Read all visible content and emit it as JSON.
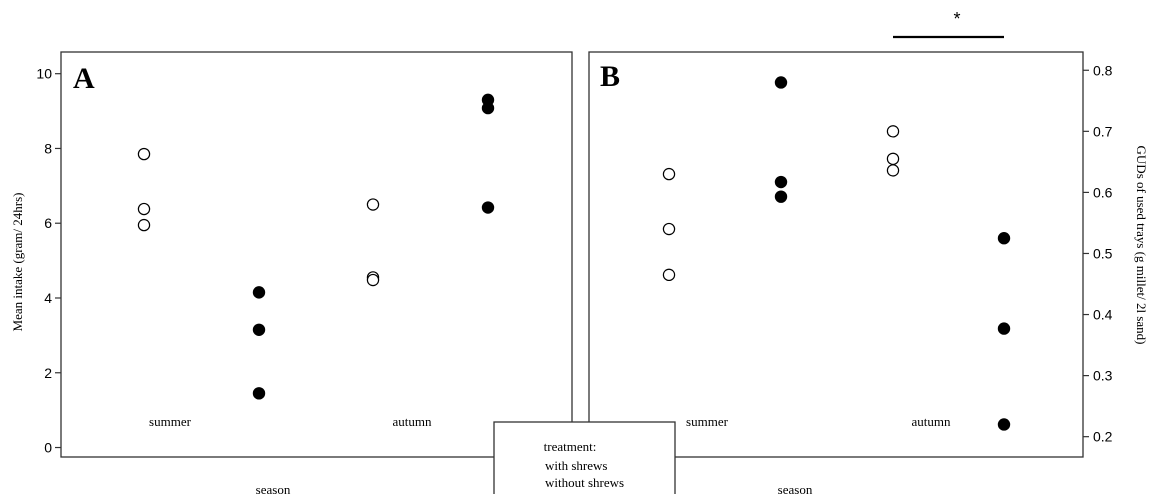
{
  "chart_data": [
    {
      "type": "scatter",
      "panel_label": "A",
      "ylabel": "Mean intake (gram/ 24hrs)",
      "xlabel": "season",
      "ylim": [
        -0.2,
        10.5
      ],
      "yticks": [
        0,
        2,
        4,
        6,
        8,
        10
      ],
      "categories": [
        "summer",
        "autumn"
      ],
      "series": [
        {
          "name": "with shrews",
          "marker": "open-circle",
          "points": [
            {
              "category": "summer",
              "y": 7.85
            },
            {
              "category": "summer",
              "y": 6.38
            },
            {
              "category": "summer",
              "y": 5.95
            },
            {
              "category": "autumn",
              "y": 6.5
            },
            {
              "category": "autumn",
              "y": 4.55
            },
            {
              "category": "autumn",
              "y": 4.48
            }
          ]
        },
        {
          "name": "without shrews",
          "marker": "filled-circle",
          "points": [
            {
              "category": "summer",
              "y": 4.15
            },
            {
              "category": "summer",
              "y": 3.15
            },
            {
              "category": "summer",
              "y": 1.45
            },
            {
              "category": "autumn",
              "y": 9.3
            },
            {
              "category": "autumn",
              "y": 9.08
            },
            {
              "category": "autumn",
              "y": 6.42
            }
          ]
        }
      ]
    },
    {
      "type": "scatter",
      "panel_label": "B",
      "ylabel": "GUDs of used trays (g millet/ 2l sand)",
      "xlabel": "season",
      "ylim": [
        0.17,
        0.825
      ],
      "yticks": [
        0.2,
        0.3,
        0.4,
        0.5,
        0.6,
        0.7,
        0.8
      ],
      "categories": [
        "summer",
        "autumn"
      ],
      "significance": {
        "label": "*",
        "category": "autumn"
      },
      "series": [
        {
          "name": "with shrews",
          "marker": "open-circle",
          "points": [
            {
              "category": "summer",
              "y": 0.63
            },
            {
              "category": "summer",
              "y": 0.54
            },
            {
              "category": "summer",
              "y": 0.465
            },
            {
              "category": "autumn",
              "y": 0.7
            },
            {
              "category": "autumn",
              "y": 0.655
            },
            {
              "category": "autumn",
              "y": 0.636
            }
          ]
        },
        {
          "name": "without shrews",
          "marker": "filled-circle",
          "points": [
            {
              "category": "summer",
              "y": 0.78
            },
            {
              "category": "summer",
              "y": 0.617
            },
            {
              "category": "summer",
              "y": 0.593
            },
            {
              "category": "autumn",
              "y": 0.525
            },
            {
              "category": "autumn",
              "y": 0.377
            },
            {
              "category": "autumn",
              "y": 0.22
            }
          ]
        }
      ]
    }
  ],
  "legend": {
    "title": "treatment:",
    "items": [
      "with shrews",
      "without shrews"
    ]
  }
}
